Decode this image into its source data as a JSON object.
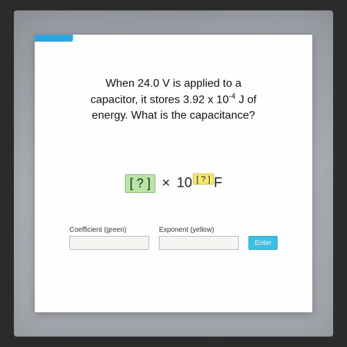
{
  "question": {
    "line1": "When 24.0 V is applied to a",
    "line2_prefix": "capacitor, it stores 3.92 x 10",
    "line2_exp": "-4",
    "line2_suffix": " J of",
    "line3": "energy. What is the capacitance?"
  },
  "expression": {
    "coef_placeholder": "[ ? ]",
    "times": "×",
    "base": "10",
    "exp_placeholder": "[ ? ]",
    "unit": "F"
  },
  "inputs": {
    "coefficient_label": "Coefficient (green)",
    "exponent_label": "Exponent (yellow)",
    "coefficient_value": "",
    "exponent_value": "",
    "enter_label": "Enter"
  },
  "colors": {
    "tab": "#2aa6e0",
    "coef_bg": "#b6e6a1",
    "exp_bg": "#f6e96b",
    "enter_bg": "#37c1e6",
    "screen_bg": "#fefefe"
  }
}
